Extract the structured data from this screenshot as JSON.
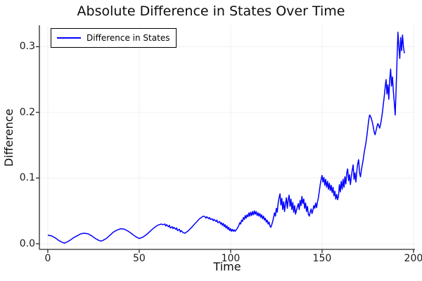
{
  "colors": {
    "line": "#0000ff",
    "grid": "#f0f0f0",
    "axis": "#2a2a2a",
    "background": "#ffffff",
    "legend_border": "#000000"
  },
  "chart_data": {
    "type": "line",
    "title": "Absolute Difference in States Over Time",
    "xlabel": "Time",
    "ylabel": "Difference",
    "xlim": [
      -4.6,
      200.8
    ],
    "ylim": [
      -0.0086,
      0.3326
    ],
    "xticks": [
      0,
      50,
      100,
      150,
      200
    ],
    "xtick_labels": [
      "0",
      "50",
      "100",
      "150",
      "200"
    ],
    "yticks": [
      0.0,
      0.1,
      0.2,
      0.3
    ],
    "ytick_labels": [
      "0.0",
      "0.1",
      "0.2",
      "0.3"
    ],
    "grid": true,
    "legend_position": "top-left",
    "series": [
      {
        "name": "Difference in States",
        "color": "#0000ff",
        "points": [
          [
            0,
            0.013
          ],
          [
            2,
            0.012
          ],
          [
            4,
            0.009
          ],
          [
            6,
            0.005
          ],
          [
            8,
            0.002
          ],
          [
            9,
            0.001
          ],
          [
            10,
            0.002
          ],
          [
            12,
            0.005
          ],
          [
            14,
            0.009
          ],
          [
            16,
            0.012
          ],
          [
            18,
            0.015
          ],
          [
            20,
            0.016
          ],
          [
            22,
            0.015
          ],
          [
            24,
            0.012
          ],
          [
            26,
            0.008
          ],
          [
            28,
            0.005
          ],
          [
            29,
            0.004
          ],
          [
            30,
            0.005
          ],
          [
            32,
            0.008
          ],
          [
            34,
            0.013
          ],
          [
            36,
            0.018
          ],
          [
            38,
            0.021
          ],
          [
            40,
            0.023
          ],
          [
            42,
            0.022
          ],
          [
            44,
            0.019
          ],
          [
            46,
            0.015
          ],
          [
            48,
            0.011
          ],
          [
            50,
            0.008
          ],
          [
            52,
            0.01
          ],
          [
            54,
            0.014
          ],
          [
            56,
            0.019
          ],
          [
            58,
            0.024
          ],
          [
            60,
            0.028
          ],
          [
            62,
            0.03
          ],
          [
            63,
            0.029
          ],
          [
            64,
            0.03
          ],
          [
            64.5,
            0.027
          ],
          [
            65,
            0.029
          ],
          [
            66,
            0.026
          ],
          [
            66.5,
            0.028
          ],
          [
            67,
            0.024
          ],
          [
            68,
            0.026
          ],
          [
            68.5,
            0.023
          ],
          [
            69,
            0.025
          ],
          [
            70,
            0.022
          ],
          [
            70.5,
            0.024
          ],
          [
            71,
            0.02
          ],
          [
            72,
            0.022
          ],
          [
            72.5,
            0.018
          ],
          [
            73,
            0.02
          ],
          [
            74,
            0.017
          ],
          [
            75,
            0.016
          ],
          [
            76,
            0.018
          ],
          [
            77,
            0.02
          ],
          [
            78,
            0.023
          ],
          [
            79,
            0.026
          ],
          [
            80,
            0.029
          ],
          [
            81,
            0.032
          ],
          [
            82,
            0.035
          ],
          [
            83,
            0.038
          ],
          [
            84,
            0.04
          ],
          [
            85,
            0.042
          ],
          [
            86,
            0.041
          ],
          [
            86.5,
            0.039
          ],
          [
            87,
            0.041
          ],
          [
            88,
            0.038
          ],
          [
            88.5,
            0.04
          ],
          [
            89,
            0.037
          ],
          [
            90,
            0.038
          ],
          [
            90.5,
            0.035
          ],
          [
            91,
            0.037
          ],
          [
            92,
            0.034
          ],
          [
            92.5,
            0.036
          ],
          [
            93,
            0.032
          ],
          [
            94,
            0.034
          ],
          [
            94.5,
            0.03
          ],
          [
            95,
            0.032
          ],
          [
            95.5,
            0.028
          ],
          [
            96,
            0.031
          ],
          [
            96.5,
            0.026
          ],
          [
            97,
            0.029
          ],
          [
            97.5,
            0.024
          ],
          [
            98,
            0.027
          ],
          [
            98.5,
            0.022
          ],
          [
            99,
            0.025
          ],
          [
            99.5,
            0.02
          ],
          [
            100,
            0.023
          ],
          [
            100.5,
            0.019
          ],
          [
            101,
            0.022
          ],
          [
            101.5,
            0.019
          ],
          [
            102,
            0.021
          ],
          [
            102.5,
            0.019
          ],
          [
            103,
            0.021
          ],
          [
            104,
            0.025
          ],
          [
            104.5,
            0.028
          ],
          [
            105,
            0.032
          ],
          [
            105.5,
            0.03
          ],
          [
            106,
            0.036
          ],
          [
            106.5,
            0.034
          ],
          [
            107,
            0.04
          ],
          [
            107.5,
            0.037
          ],
          [
            108,
            0.043
          ],
          [
            108.5,
            0.039
          ],
          [
            109,
            0.044
          ],
          [
            109.5,
            0.041
          ],
          [
            110,
            0.047
          ],
          [
            110.5,
            0.042
          ],
          [
            111,
            0.048
          ],
          [
            111.5,
            0.043
          ],
          [
            112,
            0.049
          ],
          [
            112.5,
            0.044
          ],
          [
            113,
            0.05
          ],
          [
            113.5,
            0.045
          ],
          [
            114,
            0.049
          ],
          [
            114.5,
            0.043
          ],
          [
            115,
            0.047
          ],
          [
            115.5,
            0.042
          ],
          [
            116,
            0.046
          ],
          [
            116.5,
            0.04
          ],
          [
            117,
            0.044
          ],
          [
            117.5,
            0.038
          ],
          [
            118,
            0.042
          ],
          [
            118.5,
            0.036
          ],
          [
            119,
            0.039
          ],
          [
            119.5,
            0.033
          ],
          [
            120,
            0.036
          ],
          [
            120.5,
            0.03
          ],
          [
            121,
            0.033
          ],
          [
            121.5,
            0.027
          ],
          [
            122,
            0.025
          ],
          [
            122.5,
            0.029
          ],
          [
            123,
            0.034
          ],
          [
            123.5,
            0.04
          ],
          [
            124,
            0.047
          ],
          [
            124.5,
            0.042
          ],
          [
            125,
            0.054
          ],
          [
            125.5,
            0.048
          ],
          [
            126,
            0.062
          ],
          [
            126.5,
            0.07
          ],
          [
            127,
            0.076
          ],
          [
            127.5,
            0.059
          ],
          [
            128,
            0.069
          ],
          [
            128.5,
            0.052
          ],
          [
            129,
            0.064
          ],
          [
            129.5,
            0.049
          ],
          [
            130,
            0.061
          ],
          [
            130.5,
            0.07
          ],
          [
            131,
            0.054
          ],
          [
            131.5,
            0.067
          ],
          [
            132,
            0.074
          ],
          [
            132.5,
            0.057
          ],
          [
            133,
            0.068
          ],
          [
            133.5,
            0.052
          ],
          [
            134,
            0.063
          ],
          [
            134.5,
            0.048
          ],
          [
            135,
            0.058
          ],
          [
            135.5,
            0.045
          ],
          [
            136,
            0.051
          ],
          [
            136.5,
            0.056
          ],
          [
            137,
            0.061
          ],
          [
            137.5,
            0.052
          ],
          [
            138,
            0.066
          ],
          [
            138.5,
            0.058
          ],
          [
            139,
            0.072
          ],
          [
            139.5,
            0.061
          ],
          [
            140,
            0.068
          ],
          [
            140.5,
            0.054
          ],
          [
            141,
            0.062
          ],
          [
            141.5,
            0.049
          ],
          [
            142,
            0.057
          ],
          [
            142.5,
            0.045
          ],
          [
            143,
            0.042
          ],
          [
            143.5,
            0.048
          ],
          [
            144,
            0.053
          ],
          [
            144.5,
            0.046
          ],
          [
            145,
            0.051
          ],
          [
            145.5,
            0.058
          ],
          [
            146,
            0.054
          ],
          [
            146.5,
            0.062
          ],
          [
            147,
            0.055
          ],
          [
            147.5,
            0.064
          ],
          [
            148,
            0.07
          ],
          [
            148.5,
            0.08
          ],
          [
            149,
            0.09
          ],
          [
            149.5,
            0.098
          ],
          [
            150,
            0.104
          ],
          [
            150.5,
            0.094
          ],
          [
            151,
            0.101
          ],
          [
            151.5,
            0.089
          ],
          [
            152,
            0.098
          ],
          [
            152.5,
            0.086
          ],
          [
            153,
            0.095
          ],
          [
            153.5,
            0.083
          ],
          [
            154,
            0.092
          ],
          [
            154.5,
            0.081
          ],
          [
            155,
            0.089
          ],
          [
            155.5,
            0.078
          ],
          [
            156,
            0.086
          ],
          [
            156.5,
            0.073
          ],
          [
            157,
            0.08
          ],
          [
            157.5,
            0.068
          ],
          [
            158,
            0.075
          ],
          [
            158.5,
            0.067
          ],
          [
            159,
            0.073
          ],
          [
            159.5,
            0.09
          ],
          [
            160,
            0.079
          ],
          [
            160.5,
            0.095
          ],
          [
            161,
            0.083
          ],
          [
            161.5,
            0.098
          ],
          [
            162,
            0.086
          ],
          [
            162.5,
            0.102
          ],
          [
            163,
            0.091
          ],
          [
            163.5,
            0.108
          ],
          [
            164,
            0.114
          ],
          [
            164.5,
            0.096
          ],
          [
            165,
            0.105
          ],
          [
            165.5,
            0.09
          ],
          [
            166,
            0.102
          ],
          [
            166.5,
            0.112
          ],
          [
            167,
            0.12
          ],
          [
            167.5,
            0.098
          ],
          [
            168,
            0.108
          ],
          [
            168.5,
            0.094
          ],
          [
            169,
            0.11
          ],
          [
            169.5,
            0.122
          ],
          [
            170,
            0.128
          ],
          [
            170.5,
            0.108
          ],
          [
            171,
            0.102
          ],
          [
            171.5,
            0.112
          ],
          [
            172,
            0.12
          ],
          [
            172.5,
            0.128
          ],
          [
            173,
            0.138
          ],
          [
            173.5,
            0.146
          ],
          [
            174,
            0.154
          ],
          [
            174.5,
            0.164
          ],
          [
            175,
            0.176
          ],
          [
            175.5,
            0.188
          ],
          [
            176,
            0.196
          ],
          [
            176.5,
            0.194
          ],
          [
            177,
            0.19
          ],
          [
            177.5,
            0.185
          ],
          [
            178,
            0.178
          ],
          [
            178.5,
            0.17
          ],
          [
            179,
            0.166
          ],
          [
            179.5,
            0.172
          ],
          [
            180,
            0.178
          ],
          [
            180.5,
            0.183
          ],
          [
            181,
            0.18
          ],
          [
            181.5,
            0.176
          ],
          [
            182,
            0.182
          ],
          [
            182.5,
            0.19
          ],
          [
            183,
            0.2
          ],
          [
            183.5,
            0.212
          ],
          [
            184,
            0.224
          ],
          [
            184.5,
            0.238
          ],
          [
            185,
            0.25
          ],
          [
            185.5,
            0.228
          ],
          [
            186,
            0.242
          ],
          [
            186.5,
            0.22
          ],
          [
            187,
            0.25
          ],
          [
            187.5,
            0.266
          ],
          [
            188,
            0.24
          ],
          [
            188.5,
            0.254
          ],
          [
            189,
            0.232
          ],
          [
            189.5,
            0.215
          ],
          [
            190,
            0.196
          ],
          [
            190.5,
            0.235
          ],
          [
            191,
            0.28
          ],
          [
            191.5,
            0.322
          ],
          [
            192,
            0.3
          ],
          [
            192.5,
            0.282
          ],
          [
            193,
            0.314
          ],
          [
            193.5,
            0.294
          ],
          [
            194,
            0.318
          ],
          [
            194.5,
            0.3
          ],
          [
            195,
            0.29
          ]
        ]
      }
    ]
  }
}
